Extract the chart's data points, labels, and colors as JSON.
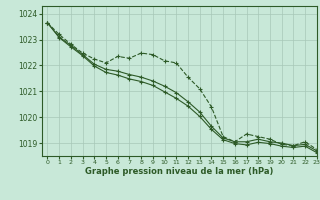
{
  "title": "Graphe pression niveau de la mer (hPa)",
  "background_color": "#c8e8d8",
  "grid_color": "#a8c8b8",
  "line_color": "#2d5a27",
  "xlim": [
    -0.5,
    23
  ],
  "ylim": [
    1018.5,
    1024.3
  ],
  "yticks": [
    1019,
    1020,
    1021,
    1022,
    1023,
    1024
  ],
  "xticks": [
    0,
    1,
    2,
    3,
    4,
    5,
    6,
    7,
    8,
    9,
    10,
    11,
    12,
    13,
    14,
    15,
    16,
    17,
    18,
    19,
    20,
    21,
    22,
    23
  ],
  "series1": [
    1023.65,
    1023.2,
    1022.82,
    1022.48,
    1022.25,
    1022.1,
    1022.35,
    1022.28,
    1022.48,
    1022.42,
    1022.18,
    1022.1,
    1021.55,
    1021.1,
    1020.4,
    1019.25,
    1019.05,
    1019.35,
    1019.25,
    1019.15,
    1018.95,
    1018.9,
    1019.05,
    1018.75
  ],
  "series2": [
    1023.65,
    1023.1,
    1022.78,
    1022.42,
    1022.05,
    1021.85,
    1021.78,
    1021.65,
    1021.55,
    1021.4,
    1021.2,
    1020.95,
    1020.6,
    1020.2,
    1019.65,
    1019.2,
    1019.05,
    1019.05,
    1019.15,
    1019.05,
    1019.0,
    1018.9,
    1018.95,
    1018.7
  ],
  "series3": [
    1023.65,
    1023.08,
    1022.72,
    1022.38,
    1021.98,
    1021.73,
    1021.63,
    1021.48,
    1021.38,
    1021.23,
    1020.98,
    1020.73,
    1020.43,
    1020.03,
    1019.53,
    1019.13,
    1018.98,
    1018.93,
    1019.03,
    1018.98,
    1018.88,
    1018.83,
    1018.88,
    1018.63
  ]
}
